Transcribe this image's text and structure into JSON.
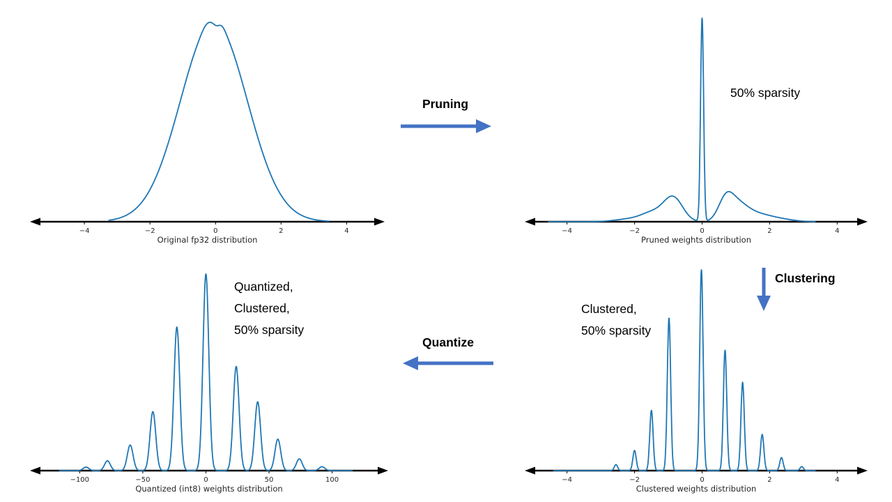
{
  "colors": {
    "curve": "#1f77b4",
    "arrow": "#4472c4",
    "axis": "#000000",
    "tick_text": "#262626"
  },
  "annotations": {
    "pruning_label": "Pruning",
    "sparsity_label": "50% sparsity",
    "clustering_label": "Clustering",
    "quantize_label": "Quantize",
    "clustered_lines": [
      "Clustered,",
      "50% sparsity"
    ],
    "quantized_lines": [
      "Quantized,",
      "Clustered,",
      "50% sparsity"
    ]
  },
  "chart_data": [
    {
      "id": "original",
      "type": "line",
      "title": "",
      "xlabel": "Original fp32 distribution",
      "ylabel": "",
      "xlim": [
        -5.3,
        4.8
      ],
      "grid": false,
      "ticks": [
        {
          "v": -4,
          "label": "−4"
        },
        {
          "v": -2,
          "label": "−2"
        },
        {
          "v": 0,
          "label": "0"
        },
        {
          "v": 2,
          "label": "2"
        },
        {
          "v": 4,
          "label": "4"
        }
      ],
      "curve_range": [
        -3.25,
        3.45
      ],
      "peaks": [
        {
          "center": -0.05,
          "sigma": 1.02,
          "height": 1.0
        },
        {
          "center": 0.02,
          "sigma": 0.09,
          "height": -0.018
        },
        {
          "center": -0.3,
          "sigma": 0.12,
          "height": 0.012
        },
        {
          "center": 0.22,
          "sigma": 0.1,
          "height": 0.01
        }
      ]
    },
    {
      "id": "pruned",
      "type": "line",
      "title": "",
      "xlabel": "Pruned weights distribution",
      "ylabel": "",
      "xlim": [
        -4.9,
        4.55
      ],
      "grid": false,
      "ticks": [
        {
          "v": -4,
          "label": "−4"
        },
        {
          "v": -2,
          "label": "−2"
        },
        {
          "v": 0,
          "label": "0"
        },
        {
          "v": 2,
          "label": "2"
        },
        {
          "v": 4,
          "label": "4"
        }
      ],
      "curve_range": [
        -4.55,
        3.35
      ],
      "peaks": [
        {
          "center": 0,
          "sigma": 0.045,
          "height": 1.0
        },
        {
          "center": -0.85,
          "sigma": 0.28,
          "height": 0.115
        },
        {
          "center": -1.45,
          "sigma": 0.35,
          "height": 0.045
        },
        {
          "center": 0.7,
          "sigma": 0.22,
          "height": 0.1
        },
        {
          "center": 1.05,
          "sigma": 0.3,
          "height": 0.075
        },
        {
          "center": 1.6,
          "sigma": 0.4,
          "height": 0.035
        },
        {
          "center": -2.2,
          "sigma": 0.4,
          "height": 0.012
        },
        {
          "center": 2.3,
          "sigma": 0.4,
          "height": 0.012
        }
      ]
    },
    {
      "id": "quantized",
      "type": "line",
      "title": "",
      "xlabel": "Quantized (int8) weights distribution",
      "ylabel": "",
      "xlim": [
        -130,
        135
      ],
      "grid": false,
      "ticks": [
        {
          "v": -100,
          "label": "−100"
        },
        {
          "v": -50,
          "label": "−50"
        },
        {
          "v": 0,
          "label": "0"
        },
        {
          "v": 50,
          "label": "50"
        },
        {
          "v": 100,
          "label": "100"
        }
      ],
      "curve_range": [
        -116,
        116
      ],
      "peaks": [
        {
          "center": -95,
          "sigma": 2.3,
          "height": 0.018
        },
        {
          "center": -78,
          "sigma": 2.3,
          "height": 0.05
        },
        {
          "center": -60,
          "sigma": 2.3,
          "height": 0.13
        },
        {
          "center": -42,
          "sigma": 2.3,
          "height": 0.3
        },
        {
          "center": -23,
          "sigma": 2.3,
          "height": 0.73
        },
        {
          "center": 0,
          "sigma": 2.3,
          "height": 1.0
        },
        {
          "center": 24,
          "sigma": 2.3,
          "height": 0.53
        },
        {
          "center": 41,
          "sigma": 2.3,
          "height": 0.35
        },
        {
          "center": 57,
          "sigma": 2.3,
          "height": 0.16
        },
        {
          "center": 74,
          "sigma": 2.3,
          "height": 0.06
        },
        {
          "center": 92,
          "sigma": 2.3,
          "height": 0.02
        }
      ]
    },
    {
      "id": "clustered",
      "type": "line",
      "title": "",
      "xlabel": "Clustered weights distribution",
      "ylabel": "",
      "xlim": [
        -4.9,
        4.55
      ],
      "grid": false,
      "ticks": [
        {
          "v": -4,
          "label": "−4"
        },
        {
          "v": -2,
          "label": "−2"
        },
        {
          "v": 0,
          "label": "0"
        },
        {
          "v": 2,
          "label": "2"
        },
        {
          "v": 4,
          "label": "4"
        }
      ],
      "curve_range": [
        -4.4,
        3.35
      ],
      "peaks": [
        {
          "center": -2.55,
          "sigma": 0.05,
          "height": 0.03
        },
        {
          "center": -2.0,
          "sigma": 0.05,
          "height": 0.1
        },
        {
          "center": -1.5,
          "sigma": 0.05,
          "height": 0.3
        },
        {
          "center": -0.98,
          "sigma": 0.05,
          "height": 0.76
        },
        {
          "center": -0.02,
          "sigma": 0.05,
          "height": 1.0
        },
        {
          "center": 0.68,
          "sigma": 0.05,
          "height": 0.6
        },
        {
          "center": 1.2,
          "sigma": 0.05,
          "height": 0.44
        },
        {
          "center": 1.78,
          "sigma": 0.05,
          "height": 0.18
        },
        {
          "center": 2.35,
          "sigma": 0.05,
          "height": 0.065
        },
        {
          "center": 2.95,
          "sigma": 0.05,
          "height": 0.02
        }
      ]
    }
  ]
}
